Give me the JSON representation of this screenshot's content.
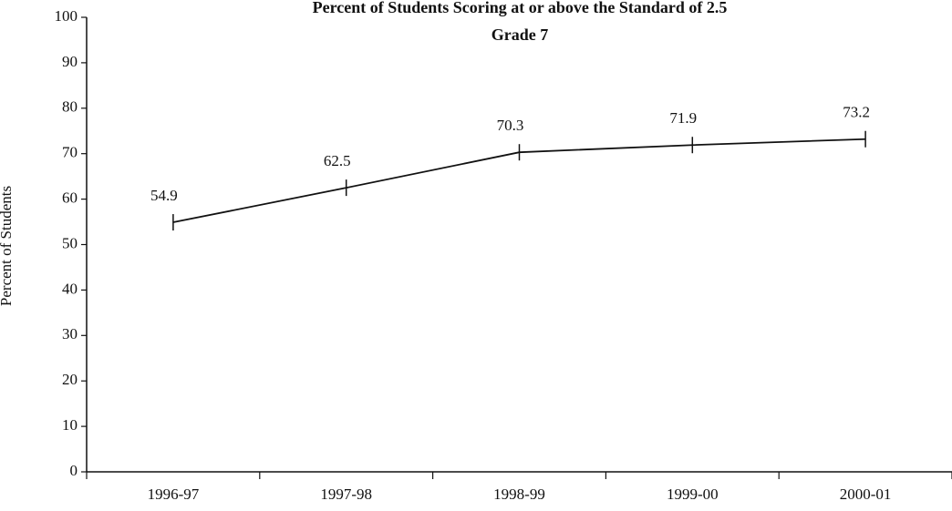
{
  "chart_data": {
    "type": "line",
    "title": "Percent of Students Scoring at or above the Standard of 2.5",
    "subtitle": "Grade 7",
    "y_label": "Percent of Students",
    "categories": [
      "1996-97",
      "1997-98",
      "1998-99",
      "1999-00",
      "2000-01"
    ],
    "series": [
      {
        "name": "Percent",
        "color": "#111111",
        "values": [
          54.9,
          62.5,
          70.3,
          71.9,
          73.2
        ]
      }
    ],
    "ylim": [
      0,
      100
    ],
    "yticks": [
      0,
      10,
      20,
      30,
      40,
      50,
      60,
      70,
      80,
      90,
      100
    ],
    "grid": false
  }
}
